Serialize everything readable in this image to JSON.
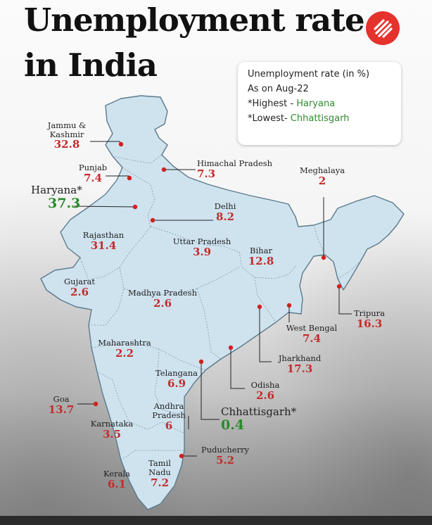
{
  "title": {
    "line1": "Unemployment rate",
    "line2": "in India"
  },
  "logo": {
    "icon": "publisher-logo-icon",
    "color": "#e5322d"
  },
  "legend": {
    "heading": "Unemployment rate (in %)",
    "date": "As on Aug-22",
    "highest_prefix": "*Highest - ",
    "highest_state": "Haryana",
    "lowest_prefix": "*Lowest- ",
    "lowest_state": "Chhattisgarh"
  },
  "colors": {
    "map_fill": "#cfe3ef",
    "value_red": "#c32b2b",
    "value_green": "#2a8a2a",
    "dot": "#d32020"
  },
  "states": [
    {
      "name": "Jammu & Kashmir",
      "value": "32.8"
    },
    {
      "name": "Himachal Pradesh",
      "value": "7.3"
    },
    {
      "name": "Punjab",
      "value": "7.4"
    },
    {
      "name": "Haryana*",
      "value": "37.3"
    },
    {
      "name": "Delhi",
      "value": "8.2"
    },
    {
      "name": "Meghalaya",
      "value": "2"
    },
    {
      "name": "Rajasthan",
      "value": "31.4"
    },
    {
      "name": "Uttar Pradesh",
      "value": "3.9"
    },
    {
      "name": "Bihar",
      "value": "12.8"
    },
    {
      "name": "Gujarat",
      "value": "2.6"
    },
    {
      "name": "Madhya Pradesh",
      "value": "2.6"
    },
    {
      "name": "Tripura",
      "value": "16.3"
    },
    {
      "name": "West Bengal",
      "value": "7.4"
    },
    {
      "name": "Maharashtra",
      "value": "2.2"
    },
    {
      "name": "Jharkhand",
      "value": "17.3"
    },
    {
      "name": "Telangana",
      "value": "6.9"
    },
    {
      "name": "Odisha",
      "value": "2.6"
    },
    {
      "name": "Goa",
      "value": "13.7"
    },
    {
      "name": "Andhra Pradesh",
      "value": "6"
    },
    {
      "name": "Chhattisgarh*",
      "value": "0.4"
    },
    {
      "name": "Karnataka",
      "value": "3.5"
    },
    {
      "name": "Puducherry",
      "value": "5.2"
    },
    {
      "name": "Kerala",
      "value": "6.1"
    },
    {
      "name": "Tamil Nadu",
      "value": "7.2"
    }
  ]
}
